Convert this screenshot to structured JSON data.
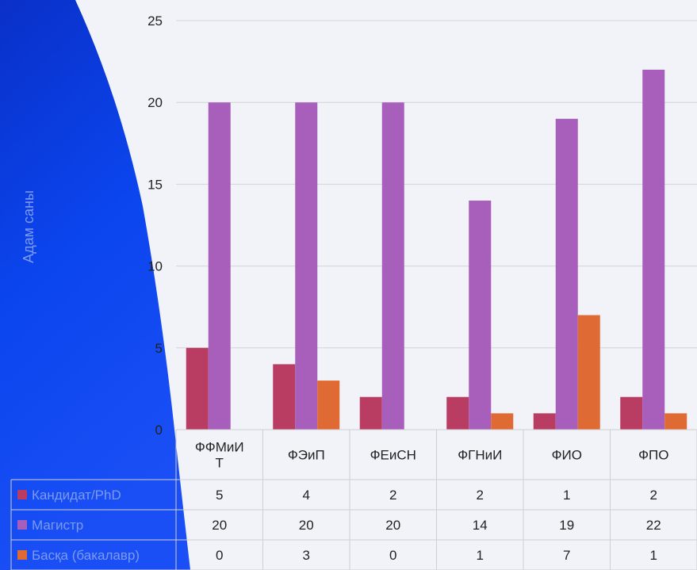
{
  "chart_data": {
    "type": "bar",
    "categories": [
      [
        "ФФМиИ",
        "Т"
      ],
      [
        "ФЭиП"
      ],
      [
        "ФЕиСН"
      ],
      [
        "ФГНиИ"
      ],
      [
        "ФИО"
      ],
      [
        "ФПО"
      ]
    ],
    "series": [
      {
        "name": "Кандидат/PhD",
        "color": "#b93c63",
        "values": [
          5,
          4,
          2,
          2,
          1,
          2
        ]
      },
      {
        "name": "Магистр",
        "color": "#a75fbb",
        "values": [
          20,
          20,
          20,
          14,
          19,
          22
        ]
      },
      {
        "name": "Басқа (бакалавр)",
        "color": "#e06a33",
        "values": [
          0,
          3,
          0,
          1,
          7,
          1
        ]
      }
    ],
    "ylabel": "Адам саны",
    "ylim": [
      0,
      25
    ],
    "yticks": [
      0,
      5,
      10,
      15,
      20,
      25
    ],
    "grid": true,
    "legend": "data-table"
  },
  "colors": {
    "background": "#f1f3f9",
    "shape_blue": "#0a3fe6",
    "gridline": "#d4d4d4",
    "table_border": "#cfcfcf",
    "on_blue_text": "#7d9af0"
  }
}
